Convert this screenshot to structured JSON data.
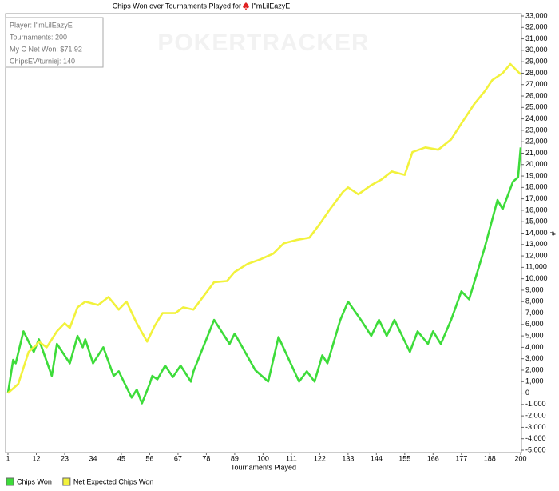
{
  "chart_data": {
    "type": "line",
    "title": "Chips Won over Tournaments Played for",
    "player": "I\"mLilEazyE",
    "watermark": "POKERTRACKER",
    "info": [
      "Player: I\"mLilEazyE",
      "Tournaments: 200",
      "My C Net Won: $71.92",
      "ChipsEV/turniej: 140"
    ],
    "xlabel": "Tournaments Played",
    "ylabel": "#",
    "xlim": [
      1,
      200
    ],
    "xticks": [
      1,
      12,
      23,
      34,
      45,
      56,
      67,
      78,
      89,
      100,
      111,
      122,
      133,
      144,
      155,
      166,
      177,
      188,
      200
    ],
    "ylim": [
      -5000,
      33000
    ],
    "yticks": [
      {
        "value": -5000,
        "label": "-5,000"
      },
      {
        "value": -4000,
        "label": "-4,000"
      },
      {
        "value": -3000,
        "label": "-3,000"
      },
      {
        "value": -2000,
        "label": "-2,000"
      },
      {
        "value": -1000,
        "label": "-1,000"
      },
      0,
      {
        "value": 1000,
        "label": "1,000"
      },
      {
        "value": 2000,
        "label": "2,000"
      },
      {
        "value": 3000,
        "label": "3,000"
      },
      {
        "value": 4000,
        "label": "4,000"
      },
      {
        "value": 5000,
        "label": "5,000"
      },
      {
        "value": 6000,
        "label": "6,000"
      },
      {
        "value": 7000,
        "label": "7,000"
      },
      {
        "value": 8000,
        "label": "8,000"
      },
      {
        "value": 9000,
        "label": "9,000"
      },
      {
        "value": 10000,
        "label": "10,000"
      },
      {
        "value": 11000,
        "label": "11,000"
      },
      {
        "value": 12000,
        "label": "12,000"
      },
      {
        "value": 13000,
        "label": "13,000"
      },
      {
        "value": 14000,
        "label": "14,000"
      },
      {
        "value": 15000,
        "label": "15,000"
      },
      {
        "value": 16000,
        "label": "16,000"
      },
      {
        "value": 17000,
        "label": "17,000"
      },
      {
        "value": 18000,
        "label": "18,000"
      },
      {
        "value": 19000,
        "label": "19,000"
      },
      {
        "value": 20000,
        "label": "20,000"
      },
      {
        "value": 21000,
        "label": "21,000"
      },
      {
        "value": 22000,
        "label": "22,000"
      },
      {
        "value": 23000,
        "label": "23,000"
      },
      {
        "value": 24000,
        "label": "24,000"
      },
      {
        "value": 25000,
        "label": "25,000"
      },
      {
        "value": 26000,
        "label": "26,000"
      },
      {
        "value": 27000,
        "label": "27,000"
      },
      {
        "value": 28000,
        "label": "28,000"
      },
      {
        "value": 29000,
        "label": "29,000"
      },
      {
        "value": 30000,
        "label": "30,000"
      },
      {
        "value": 31000,
        "label": "31,000"
      },
      {
        "value": 32000,
        "label": "32,000"
      },
      {
        "value": 33000,
        "label": "33,000"
      }
    ],
    "zero_line": true,
    "series": [
      {
        "name": "Chips Won",
        "color": "#3ddc3a",
        "x": [
          1,
          3,
          4,
          7,
          11,
          13,
          18,
          20,
          25,
          28,
          30,
          31,
          34,
          38,
          42,
          44,
          49,
          51,
          53,
          56,
          57,
          59,
          62,
          65,
          68,
          72,
          73,
          81,
          87,
          89,
          97,
          102,
          106,
          114,
          117,
          120,
          123,
          125,
          130,
          133,
          138,
          142,
          145,
          148,
          151,
          157,
          160,
          164,
          166,
          169,
          173,
          177,
          180,
          186,
          191,
          193,
          197,
          199,
          200
        ],
        "values": [
          0,
          2900,
          2600,
          5400,
          3600,
          4700,
          1500,
          4300,
          2600,
          5000,
          4000,
          4700,
          2600,
          4000,
          1500,
          1900,
          -400,
          300,
          -900,
          800,
          1500,
          1200,
          2400,
          1400,
          2400,
          1000,
          1900,
          6400,
          4300,
          5200,
          2000,
          1000,
          4900,
          1000,
          1900,
          1000,
          3300,
          2600,
          6400,
          8000,
          6400,
          5000,
          6400,
          5000,
          6400,
          3600,
          5400,
          4300,
          5400,
          4300,
          6400,
          8900,
          8200,
          12700,
          16900,
          16100,
          18500,
          18900,
          21500
        ]
      },
      {
        "name": "Net Expected Chips Won",
        "color": "#f2f23c",
        "x": [
          1,
          5,
          9,
          12,
          13,
          16,
          20,
          23,
          25,
          28,
          31,
          36,
          40,
          44,
          47,
          51,
          55,
          58,
          61,
          66,
          69,
          73,
          77,
          81,
          86,
          89,
          94,
          99,
          104,
          108,
          113,
          118,
          122,
          126,
          131,
          133,
          137,
          142,
          146,
          150,
          155,
          158,
          163,
          168,
          173,
          177,
          182,
          186,
          189,
          193,
          196,
          200
        ],
        "values": [
          0,
          800,
          3600,
          4200,
          4500,
          4000,
          5400,
          6100,
          5700,
          7500,
          8000,
          7700,
          8400,
          7300,
          8000,
          6100,
          4500,
          5900,
          7000,
          7000,
          7500,
          7300,
          8500,
          9700,
          9800,
          10600,
          11300,
          11700,
          12200,
          13100,
          13400,
          13600,
          14800,
          16100,
          17600,
          18000,
          17400,
          18200,
          18700,
          19400,
          19100,
          21100,
          21500,
          21300,
          22200,
          23600,
          25300,
          26400,
          27400,
          28000,
          28800,
          27900
        ]
      }
    ]
  }
}
